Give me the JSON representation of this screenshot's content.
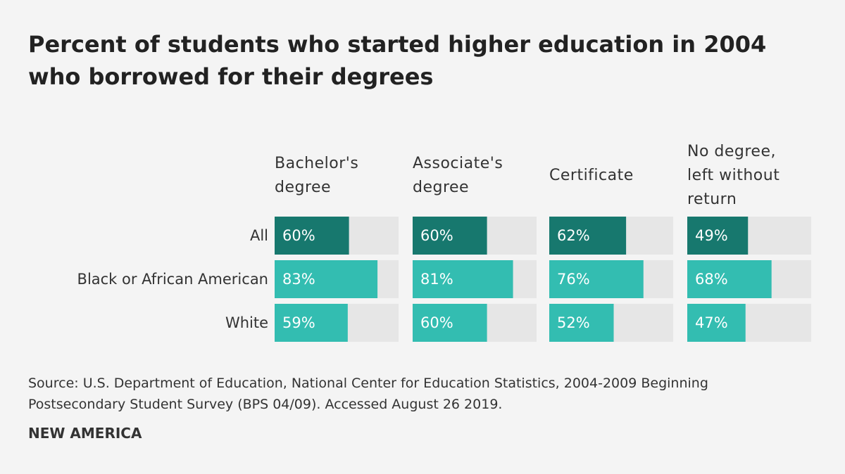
{
  "chart_data": {
    "type": "bar",
    "title": "Percent of students who started higher education in 2004 who borrowed for their degrees",
    "categories": [
      "All",
      "Black or African American",
      "White"
    ],
    "category_colors": [
      "#17786e",
      "#33bdb1",
      "#33bdb1"
    ],
    "track_color": "#e6e6e6",
    "xlim": [
      0,
      100
    ],
    "series": [
      {
        "name": "Bachelor's degree",
        "values": [
          60,
          83,
          59
        ],
        "value_labels": [
          "60%",
          "83%",
          "59%"
        ]
      },
      {
        "name": "Associate's degree",
        "values": [
          60,
          81,
          60
        ],
        "value_labels": [
          "60%",
          "81%",
          "60%"
        ]
      },
      {
        "name": "Certificate",
        "values": [
          62,
          76,
          52
        ],
        "value_labels": [
          "62%",
          "76%",
          "52%"
        ]
      },
      {
        "name": "No degree, left without return",
        "values": [
          49,
          68,
          47
        ],
        "value_labels": [
          "49%",
          "68%",
          "47%"
        ]
      }
    ],
    "source": "Source: U.S. Department of Education, National Center for Education Statistics, 2004-2009 Beginning Postsecondary Student Survey (BPS 04/09). Accessed August 26 2019.",
    "publisher": "NEW AMERICA"
  }
}
